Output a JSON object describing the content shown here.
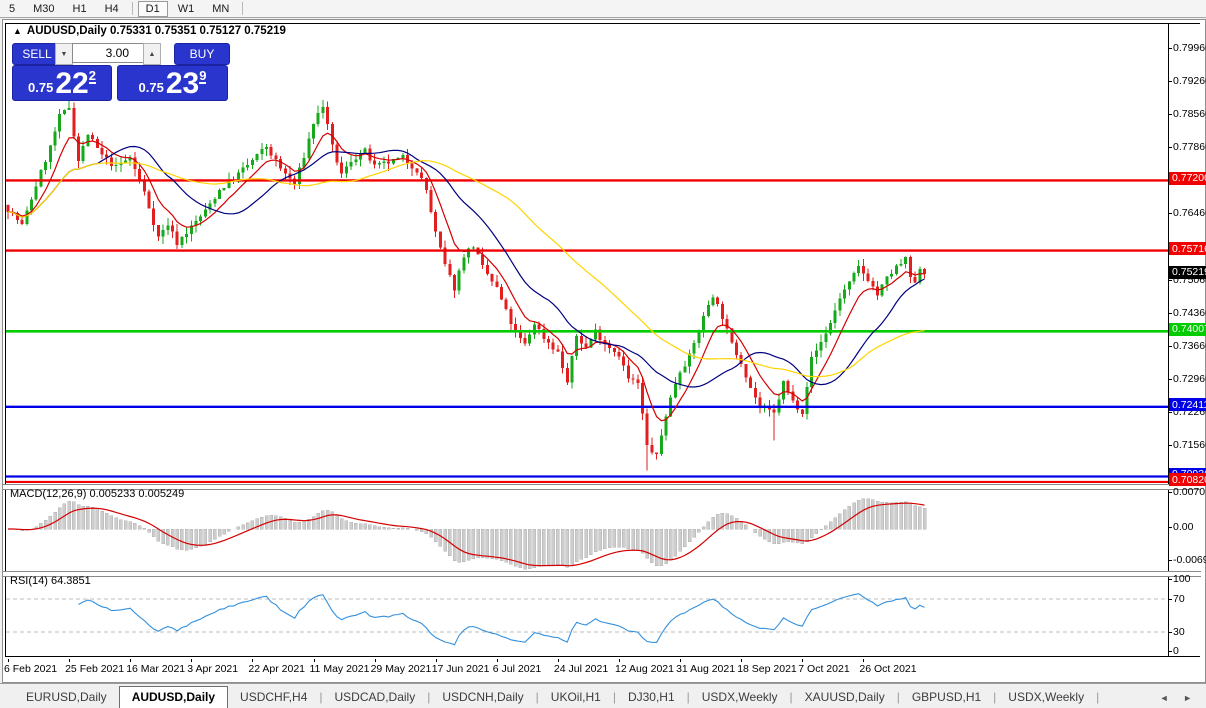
{
  "toolbar": {
    "timeframes": [
      {
        "label": "5",
        "active": false
      },
      {
        "label": "M30",
        "active": false
      },
      {
        "label": "H1",
        "active": false
      },
      {
        "label": "H4",
        "active": false
      },
      {
        "label": "|",
        "sep": true
      },
      {
        "label": "D1",
        "active": true
      },
      {
        "label": "W1",
        "active": false
      },
      {
        "label": "MN",
        "active": false
      },
      {
        "label": "|",
        "sep": true
      }
    ]
  },
  "chart": {
    "collapse_arrow": "▲",
    "symbol_title": "AUDUSD,Daily",
    "ohlc_text": "0.75331 0.75351 0.75127 0.75219"
  },
  "trade_panel": {
    "sell_label": "SELL",
    "buy_label": "BUY",
    "volume": "3.00",
    "spin_down": "▼",
    "spin_up": "▲",
    "sell_price_small": "0.75",
    "sell_price_big": "22",
    "sell_price_sup": "2",
    "buy_price_small": "0.75",
    "buy_price_big": "23",
    "buy_price_sup": "9"
  },
  "macd_pane": {
    "label": "MACD(12,26,9) 0.005233 0.005249",
    "axis": [
      "0.007015",
      "0.00",
      "-0.00692"
    ]
  },
  "rsi_pane": {
    "label": "RSI(14) 64.3851",
    "axis": [
      "100",
      "70",
      "30",
      "0"
    ]
  },
  "tab_bar": {
    "tabs": [
      {
        "label": "EURUSD,Daily",
        "active": false
      },
      {
        "label": "AUDUSD,Daily",
        "active": true
      },
      {
        "label": "USDCHF,H4",
        "active": false
      },
      {
        "label": "USDCAD,Daily",
        "active": false
      },
      {
        "label": "USDCNH,Daily",
        "active": false
      },
      {
        "label": "UKOil,H1",
        "active": false
      },
      {
        "label": "DJ30,H1",
        "active": false
      },
      {
        "label": "USDX,Weekly",
        "active": false
      },
      {
        "label": "XAUUSD,Daily",
        "active": false
      },
      {
        "label": "GBPUSD,H1",
        "active": false
      },
      {
        "label": "USDX,Weekly",
        "active": false
      }
    ],
    "arrows": "◄ ►"
  },
  "chart_data": {
    "type": "candlestick",
    "symbol": "AUDUSD",
    "timeframe": "Daily",
    "title": "AUDUSD,Daily 0.75331 0.75351 0.75127 0.75219",
    "last_bar_ohlc": {
      "open": 0.75331,
      "high": 0.75351,
      "low": 0.75127,
      "close": 0.75219
    },
    "n_bars": 196,
    "bars_per_x_label": 13,
    "x_labels": [
      "6 Feb 2021",
      "25 Feb 2021",
      "16 Mar 2021",
      "3 Apr 2021",
      "22 Apr 2021",
      "11 May 2021",
      "29 May 2021",
      "17 Jun 2021",
      "6 Jul 2021",
      "24 Jul 2021",
      "12 Aug 2021",
      "31 Aug 2021",
      "18 Sep 2021",
      "7 Oct 2021",
      "26 Oct 2021"
    ],
    "y_axis": {
      "ticks": [
        0.7996,
        0.7926,
        0.7856,
        0.7786,
        0.7716,
        0.7646,
        0.7576,
        0.7506,
        0.7436,
        0.7366,
        0.7296,
        0.7226,
        0.7156,
        0.7086
      ],
      "step": 0.007
    },
    "price_path_anchors": [
      [
        0,
        0.766
      ],
      [
        3,
        0.7625
      ],
      [
        6,
        0.771
      ],
      [
        9,
        0.779
      ],
      [
        11,
        0.7855
      ],
      [
        13,
        0.7875
      ],
      [
        15,
        0.7762
      ],
      [
        17,
        0.7818
      ],
      [
        20,
        0.7772
      ],
      [
        23,
        0.7748
      ],
      [
        26,
        0.7768
      ],
      [
        29,
        0.7695
      ],
      [
        32,
        0.76
      ],
      [
        34,
        0.7628
      ],
      [
        36,
        0.7588
      ],
      [
        39,
        0.7622
      ],
      [
        42,
        0.7655
      ],
      [
        45,
        0.77
      ],
      [
        48,
        0.7725
      ],
      [
        52,
        0.7762
      ],
      [
        55,
        0.7792
      ],
      [
        58,
        0.7745
      ],
      [
        61,
        0.7712
      ],
      [
        63,
        0.7772
      ],
      [
        65,
        0.7842
      ],
      [
        67,
        0.7878
      ],
      [
        69,
        0.779
      ],
      [
        71,
        0.7732
      ],
      [
        73,
        0.7762
      ],
      [
        76,
        0.7782
      ],
      [
        78,
        0.7748
      ],
      [
        81,
        0.7758
      ],
      [
        84,
        0.7768
      ],
      [
        87,
        0.7742
      ],
      [
        89,
        0.77
      ],
      [
        91,
        0.7608
      ],
      [
        93,
        0.754
      ],
      [
        95,
        0.7492
      ],
      [
        97,
        0.7562
      ],
      [
        99,
        0.7582
      ],
      [
        101,
        0.7535
      ],
      [
        104,
        0.7492
      ],
      [
        106,
        0.7442
      ],
      [
        108,
        0.7396
      ],
      [
        110,
        0.7372
      ],
      [
        112,
        0.7418
      ],
      [
        114,
        0.7388
      ],
      [
        117,
        0.7356
      ],
      [
        119,
        0.7292
      ],
      [
        121,
        0.7392
      ],
      [
        123,
        0.7366
      ],
      [
        125,
        0.7402
      ],
      [
        127,
        0.7376
      ],
      [
        130,
        0.7352
      ],
      [
        132,
        0.73
      ],
      [
        134,
        0.729
      ],
      [
        136,
        0.7158
      ],
      [
        138,
        0.7136
      ],
      [
        140,
        0.7225
      ],
      [
        142,
        0.7292
      ],
      [
        143,
        0.7318
      ],
      [
        145,
        0.7348
      ],
      [
        147,
        0.7402
      ],
      [
        149,
        0.7458
      ],
      [
        150,
        0.7478
      ],
      [
        152,
        0.7432
      ],
      [
        154,
        0.7372
      ],
      [
        156,
        0.7336
      ],
      [
        158,
        0.7282
      ],
      [
        160,
        0.7242
      ],
      [
        163,
        0.7226
      ],
      [
        165,
        0.7292
      ],
      [
        167,
        0.7252
      ],
      [
        169,
        0.7232
      ],
      [
        171,
        0.7342
      ],
      [
        173,
        0.7378
      ],
      [
        175,
        0.7418
      ],
      [
        177,
        0.7472
      ],
      [
        179,
        0.7502
      ],
      [
        181,
        0.7536
      ],
      [
        183,
        0.7512
      ],
      [
        185,
        0.7478
      ],
      [
        187,
        0.7512
      ],
      [
        189,
        0.7536
      ],
      [
        191,
        0.7552
      ],
      [
        192,
        0.7516
      ],
      [
        193,
        0.7498
      ],
      [
        194,
        0.7533
      ],
      [
        195,
        0.7522
      ]
    ],
    "spikes": [
      {
        "i": 13,
        "high": 0.7888
      },
      {
        "i": 67,
        "high": 0.789
      },
      {
        "i": 136,
        "low": 0.7106
      },
      {
        "i": 163,
        "low": 0.717
      },
      {
        "i": 191,
        "high": 0.7556
      }
    ],
    "bull_color": "#17a81b",
    "bear_color": "#e21e1e",
    "moving_averages": [
      {
        "name": "fast-ma",
        "method": "ema",
        "period": 8,
        "color": "#d40000"
      },
      {
        "name": "mid-ma",
        "method": "sma",
        "period": 20,
        "color": "#000080"
      },
      {
        "name": "slow-ma",
        "method": "sma",
        "period": 45,
        "color": "#ffd400"
      }
    ],
    "horizontal_lines": [
      {
        "price": 0.772,
        "label": "0.77200",
        "color": "#f00000",
        "width": 2.4
      },
      {
        "price": 0.75716,
        "label": "0.75716",
        "color": "#f00000",
        "width": 2.4
      },
      {
        "price": 0.74007,
        "label": "0.74007",
        "color": "#00cc00",
        "width": 2.6
      },
      {
        "price": 0.72411,
        "label": "0.72411",
        "color": "#0000e8",
        "width": 2.4
      },
      {
        "price": 0.70936,
        "label": "0.70936",
        "color": "#0000e8",
        "width": 2.2
      },
      {
        "price": 0.7082,
        "label": "0.70820",
        "color": "#f00000",
        "width": 2.2
      }
    ],
    "current_price": {
      "value": 0.75219,
      "label": "0.75219",
      "chip_color": "#000000"
    },
    "macd": {
      "fast": 12,
      "slow": 26,
      "signal_period": 9,
      "current_main": 0.005233,
      "current_signal": 0.005249,
      "axis_top": 0.007015,
      "axis_zero": 0.0,
      "axis_bottom": -0.00692,
      "histogram_color": "#cdcdcd",
      "histogram_border": "#b3b3b3",
      "signal_color": "#d40000"
    },
    "rsi": {
      "period": 14,
      "current": 64.3851,
      "levels": [
        70,
        30
      ],
      "axis": [
        100,
        70,
        30,
        0
      ],
      "line_color": "#3390dd",
      "level_line_color": "#bdbdbd"
    },
    "grid": false,
    "background": "#ffffff"
  }
}
